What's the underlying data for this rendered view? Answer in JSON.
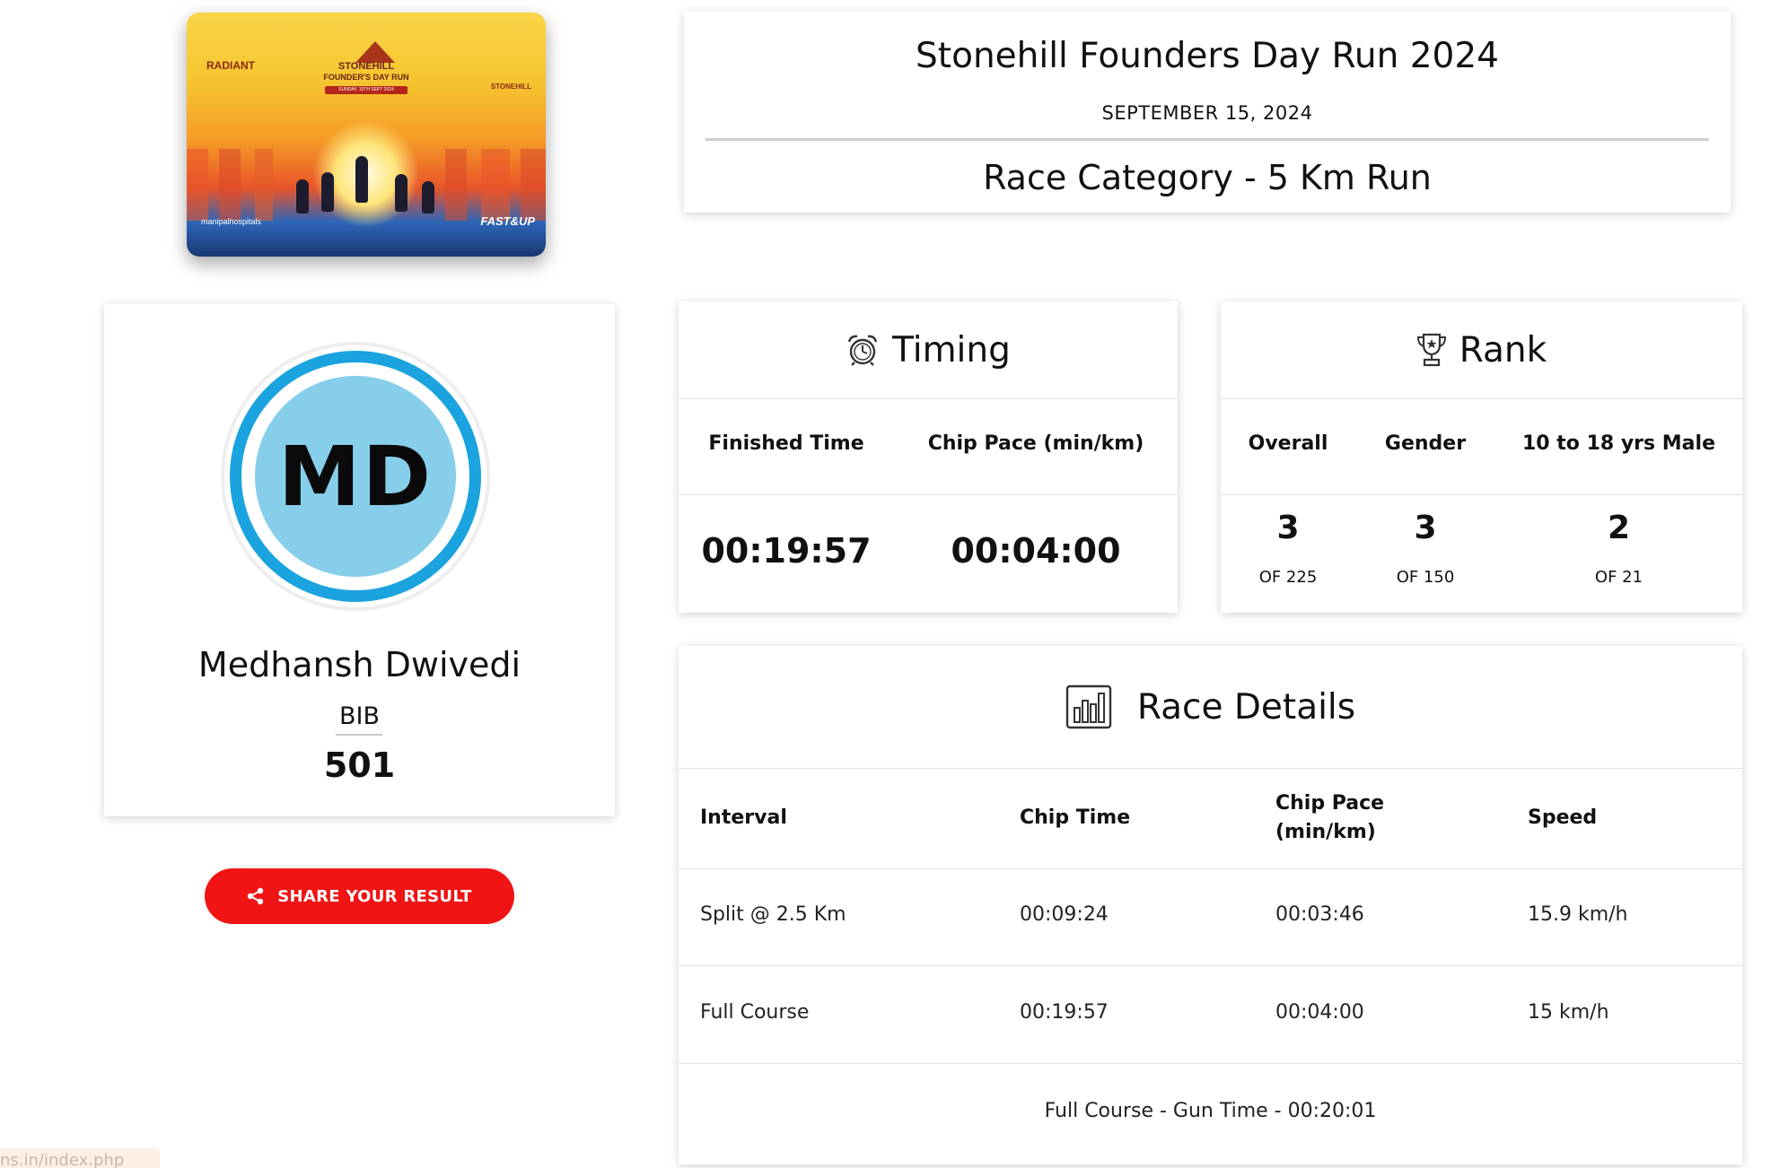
{
  "poster": {
    "organizer_logo": "RADIANT",
    "event_name_line1": "STONEHILL",
    "event_name_line2": "FOUNDER'S DAY RUN",
    "band_text": "SUNDAY, 15TH SEPT 2024",
    "host_logo": "STONEHILL",
    "medical_partner": "manipalhospitals",
    "energy_partner": "FAST&UP"
  },
  "event": {
    "title": "Stonehill Founders Day Run 2024",
    "date": "SEPTEMBER 15, 2024",
    "category": "Race Category - 5 Km Run"
  },
  "profile": {
    "initials": "MD",
    "name": "Medhansh Dwivedi",
    "bib_label": "BIB",
    "bib_number": "501"
  },
  "share": {
    "label": "SHARE YOUR RESULT",
    "icon": "share-icon"
  },
  "timing": {
    "title": "Timing",
    "icon": "alarm-clock-icon",
    "finished_time_label": "Finished Time",
    "chip_pace_label": "Chip Pace (min/km)",
    "finished_time": "00:19:57",
    "chip_pace": "00:04:00"
  },
  "rank": {
    "title": "Rank",
    "icon": "trophy-icon",
    "columns": [
      {
        "label": "Overall",
        "value": "3",
        "of": "OF 225"
      },
      {
        "label": "Gender",
        "value": "3",
        "of": "OF 150"
      },
      {
        "label": "10 to 18 yrs Male",
        "value": "2",
        "of": "OF 21"
      }
    ]
  },
  "race_details": {
    "title": "Race Details",
    "icon": "bar-chart-icon",
    "headers": [
      "Interval",
      "Chip Time",
      "Chip Pace (min/km)",
      "Speed"
    ],
    "rows": [
      [
        "Split @ 2.5 Km",
        "00:09:24",
        "00:03:46",
        "15.9 km/h"
      ],
      [
        "Full Course",
        "00:19:57",
        "00:04:00",
        "15 km/h"
      ]
    ],
    "gun_time": "Full Course - Gun Time - 00:20:01"
  },
  "url_fragment": "ns.in/index.php",
  "colors": {
    "accent_blue": "#1aa3df",
    "avatar_fill": "#87ceeb",
    "share_red": "#f01414"
  }
}
